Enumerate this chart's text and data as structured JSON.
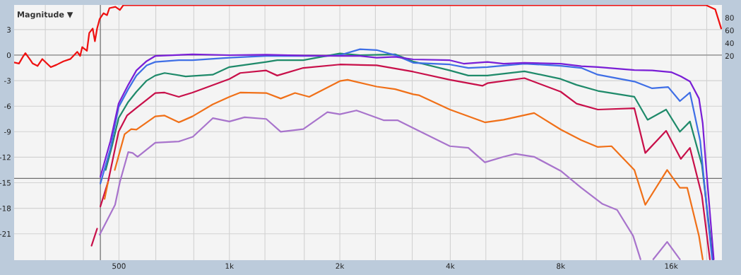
{
  "chart_data": {
    "type": "line",
    "title": "Magnitude ▼",
    "log": "x",
    "grid": true,
    "xlim": [
      259,
      22000
    ],
    "xticks": [
      {
        "value": 315,
        "label": null
      },
      {
        "value": 400,
        "label": null
      },
      500,
      {
        "value": 630,
        "label": null
      },
      {
        "value": 800,
        "label": null
      },
      {
        "value": 1000,
        "label": "1k"
      },
      {
        "value": 1250,
        "label": null
      },
      {
        "value": 1600,
        "label": null
      },
      {
        "value": 2000,
        "label": "2k"
      },
      {
        "value": 2500,
        "label": null
      },
      {
        "value": 3150,
        "label": null
      },
      {
        "value": 4000,
        "label": "4k"
      },
      {
        "value": 5000,
        "label": null
      },
      {
        "value": 6300,
        "label": null
      },
      {
        "value": 8000,
        "label": "8k"
      },
      {
        "value": 10000,
        "label": null
      },
      {
        "value": 12500,
        "label": null
      },
      {
        "value": 16000,
        "label": "16k"
      },
      {
        "value": 20000,
        "label": null
      }
    ],
    "ylim": [
      -24.1,
      5.9
    ],
    "yticks": [
      -21,
      -18,
      -15,
      -12,
      -9,
      -6,
      -3,
      0,
      3
    ],
    "y2lim": [
      -301,
      100
    ],
    "y2ticks": [
      20,
      40,
      60,
      80
    ],
    "ref_lines": [
      {
        "axis": "x",
        "value": 445,
        "color": "#6e6e6e"
      },
      {
        "axis": "y",
        "value": -14.5,
        "color": "#6e6e6e"
      },
      {
        "axis": "y",
        "value": 0,
        "color": "#8a8a8a"
      }
    ],
    "series": [
      {
        "color": "#ee1111",
        "axis": "y2",
        "x": [
          259,
          267,
          274,
          278,
          287,
          291,
          300,
          309,
          326,
          338,
          353,
          369,
          385,
          392,
          397,
          409,
          415,
          424,
          430,
          436,
          443,
          454,
          464,
          471,
          489,
          503,
          514,
          19900,
          21100,
          21900
        ],
        "values": [
          9.7,
          8,
          19,
          24.4,
          13.3,
          8,
          4.1,
          15,
          2.2,
          6,
          11.4,
          15.2,
          26.3,
          20,
          33.7,
          28,
          56,
          63,
          43,
          63,
          78,
          87,
          84,
          95,
          97,
          92,
          99.7,
          99.7,
          93,
          63
        ]
      },
      {
        "color": "#c8104a",
        "x": [
          421,
          436,
          440,
          445,
          467,
          499,
          526,
          558,
          628,
          666,
          728,
          793,
          1000,
          1070,
          1260,
          1350,
          1590,
          2000,
          2520,
          3170,
          3990,
          4900,
          5050,
          6370,
          8000,
          8840,
          10100,
          12700,
          13600,
          15500,
          17000,
          18000,
          19400,
          20400
        ],
        "values": [
          -22.4,
          -20.4,
          null,
          -17.8,
          -14.9,
          -9.0,
          -7.1,
          -6.2,
          -4.45,
          -4.4,
          -4.9,
          -4.4,
          -2.8,
          -2.1,
          -1.8,
          -2.4,
          -1.5,
          -1.1,
          -1.2,
          -1.95,
          -2.9,
          -3.6,
          -3.3,
          -2.7,
          -4.3,
          -5.7,
          -6.4,
          -6.25,
          -11.5,
          -8.9,
          -12.2,
          -10.9,
          -16.5,
          -24
        ]
      },
      {
        "color": "#f07018",
        "x": [
          457,
          467,
          475,
          487,
          518,
          540,
          558,
          628,
          666,
          728,
          793,
          900,
          1000,
          1070,
          1260,
          1380,
          1510,
          1650,
          2000,
          2100,
          2520,
          2830,
          3170,
          3280,
          3990,
          4970,
          5590,
          6770,
          8000,
          9100,
          10100,
          11000,
          12700,
          13600,
          15600,
          16900,
          17700,
          19050,
          19500
        ],
        "values": [
          -16.9,
          -14.9,
          null,
          -13.5,
          -9.3,
          -8.7,
          -8.75,
          -7.2,
          -7.1,
          -7.9,
          -7.2,
          -5.8,
          -4.9,
          -4.4,
          -4.45,
          -5.1,
          -4.45,
          -4.9,
          -3.05,
          -2.9,
          -3.7,
          -4.0,
          -4.6,
          -4.7,
          -6.4,
          -7.9,
          -7.6,
          -6.8,
          -8.75,
          -10.0,
          -10.8,
          -10.7,
          -13.5,
          -17.6,
          -13.5,
          -15.6,
          -15.6,
          -21.25,
          -24
        ]
      },
      {
        "color": "#a874cc",
        "x": [
          443,
          488,
          503,
          530,
          545,
          562,
          628,
          728,
          795,
          902,
          1000,
          1100,
          1260,
          1380,
          1590,
          1850,
          2000,
          2220,
          2630,
          2870,
          3230,
          3990,
          4480,
          4970,
          5590,
          6020,
          6770,
          8000,
          9100,
          10400,
          11400,
          12600,
          13200,
          13800,
          14300,
          15600,
          16900
        ],
        "values": [
          -21.1,
          -17.6,
          -14.9,
          -11.4,
          -11.5,
          -11.95,
          -10.3,
          -10.15,
          -9.6,
          -7.4,
          -7.8,
          -7.3,
          -7.5,
          -9.0,
          -8.7,
          -6.7,
          -6.95,
          -6.5,
          -7.65,
          -7.65,
          -8.75,
          -10.7,
          -10.9,
          -12.6,
          -11.95,
          -11.6,
          -11.95,
          -13.6,
          -15.6,
          -17.5,
          -18.2,
          -21.25,
          -24,
          null,
          -24,
          -21.95,
          -24
        ]
      },
      {
        "color": "#1f8a6a",
        "x": [
          460,
          480,
          499,
          530,
          558,
          595,
          628,
          666,
          760,
          900,
          1000,
          1260,
          1350,
          1590,
          2000,
          2270,
          2830,
          3170,
          3990,
          4480,
          5050,
          6370,
          8000,
          8840,
          10100,
          12700,
          13800,
          15500,
          16900,
          18000,
          19400,
          20800
        ],
        "values": [
          -13.5,
          -10.5,
          -7.4,
          -5.5,
          -4.3,
          -3.0,
          -2.4,
          -2.1,
          -2.5,
          -2.3,
          -1.4,
          -0.8,
          -0.6,
          -0.6,
          0.2,
          0.0,
          0.1,
          -0.75,
          -1.8,
          -2.4,
          -2.4,
          -1.9,
          -2.8,
          -3.5,
          -4.2,
          -4.9,
          -7.6,
          -6.4,
          -9.0,
          -7.8,
          -12.9,
          -24
        ]
      },
      {
        "color": "#3f6fe6",
        "x": [
          445,
          474,
          499,
          530,
          558,
          595,
          628,
          728,
          793,
          1000,
          1260,
          1590,
          1850,
          2000,
          2270,
          2520,
          2830,
          3170,
          3990,
          4480,
          5050,
          6370,
          8000,
          9100,
          10100,
          12700,
          14200,
          15700,
          16900,
          18000,
          19200,
          20000,
          20700
        ],
        "values": [
          -15.1,
          -11,
          -6.1,
          -4.0,
          -2.4,
          -1.2,
          -0.8,
          -0.6,
          -0.6,
          -0.3,
          -0.1,
          -0.1,
          -0.1,
          0,
          0.7,
          0.6,
          0.0,
          -0.9,
          -1.1,
          -1.5,
          -1.4,
          -1.0,
          -1.25,
          -1.5,
          -2.3,
          -3.1,
          -3.9,
          -3.75,
          -5.4,
          -4.4,
          -10.1,
          -18,
          -24
        ]
      },
      {
        "color": "#7a1fd6",
        "x": [
          445,
          474,
          499,
          530,
          558,
          595,
          628,
          793,
          1000,
          1260,
          1590,
          2000,
          2270,
          2520,
          2830,
          3170,
          3990,
          4350,
          5050,
          5590,
          6370,
          8000,
          9100,
          10100,
          12700,
          14200,
          16000,
          17000,
          18000,
          19050,
          19500,
          19900,
          20900
        ],
        "values": [
          -14.3,
          -10.1,
          -5.7,
          -3.5,
          -1.8,
          -0.7,
          -0.1,
          0.1,
          0,
          0.05,
          -0.05,
          -0.1,
          -0.1,
          -0.3,
          -0.2,
          -0.5,
          -0.6,
          -1.0,
          -0.8,
          -1.0,
          -0.9,
          -1.0,
          -1.3,
          -1.4,
          -1.75,
          -1.8,
          -2.0,
          -2.5,
          -3.1,
          -5.1,
          -8.0,
          -12.9,
          -24
        ]
      }
    ]
  }
}
